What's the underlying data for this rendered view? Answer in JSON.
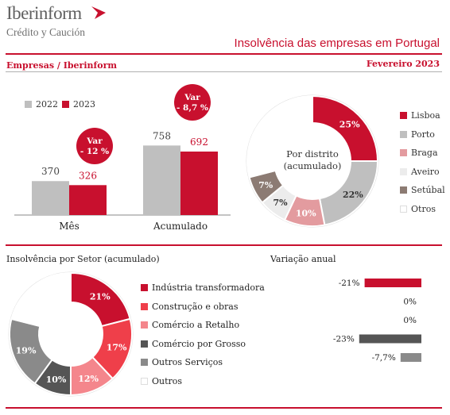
{
  "header": {
    "logo_name": "Iberinform",
    "logo_sub": "Crédito y Caución",
    "title": "Insolvência das empresas em Portugal",
    "subhead_left": "Empresas / Iberinform",
    "subhead_right": "Fevereiro 2023"
  },
  "colors": {
    "red": "#c8102e",
    "grey_bar": "#bfbfbf"
  },
  "chart_data": [
    {
      "type": "bar",
      "categories": [
        "Mês",
        "Acumulado"
      ],
      "series": [
        {
          "name": "2022",
          "values": [
            370,
            758
          ],
          "color": "#bfbfbf"
        },
        {
          "name": "2023",
          "values": [
            326,
            692
          ],
          "color": "#c8102e"
        }
      ],
      "annotations": [
        {
          "category": "Mês",
          "label": "Var\n- 12 %"
        },
        {
          "category": "Acumulado",
          "label": "Var\n- 8,7 %"
        }
      ]
    },
    {
      "type": "pie",
      "title": "Por distrito\n(acumulado)",
      "slices": [
        {
          "label": "Lisboa",
          "value": 25,
          "display": "25%",
          "color": "#c8102e"
        },
        {
          "label": "Porto",
          "value": 22,
          "display": "22%",
          "color": "#bfbfbf"
        },
        {
          "label": "Braga",
          "value": 10,
          "display": "10%",
          "color": "#e39b9f"
        },
        {
          "label": "Aveiro",
          "value": 7,
          "display": "7%",
          "color": "#ececec"
        },
        {
          "label": "Setúbal",
          "value": 7,
          "display": "7%",
          "color": "#8c7b73"
        },
        {
          "label": "Otros",
          "value": 29,
          "display": "",
          "color": "#ffffff"
        }
      ]
    },
    {
      "type": "pie",
      "title": "Insolvência por Setor (acumulado)",
      "slices": [
        {
          "label": "Indústria transformadora",
          "value": 21,
          "display": "21%",
          "color": "#c8102e"
        },
        {
          "label": "Construção e obras",
          "value": 17,
          "display": "17%",
          "color": "#ef3f4a"
        },
        {
          "label": "Comércio a Retalho",
          "value": 12,
          "display": "12%",
          "color": "#f4868c"
        },
        {
          "label": "Comércio por Grosso",
          "value": 10,
          "display": "10%",
          "color": "#555555"
        },
        {
          "label": "Outros Serviços",
          "value": 19,
          "display": "19%",
          "color": "#8a8a8a"
        },
        {
          "label": "Outros",
          "value": 21,
          "display": "",
          "color": "#ffffff"
        }
      ]
    },
    {
      "type": "bar",
      "title": "Variação anual",
      "categories": [
        "Indústria transformadora",
        "Construção e obras",
        "Comércio a Retalho",
        "Comércio por Grosso",
        "Outros Serviços"
      ],
      "values": [
        -21,
        0,
        0,
        -23,
        -7.7
      ],
      "labels": [
        "-21%",
        "0%",
        "0%",
        "-23%",
        "-7,7%"
      ],
      "colors": [
        "#c8102e",
        "#ef3f4a",
        "#f4868c",
        "#555555",
        "#8a8a8a"
      ]
    }
  ]
}
